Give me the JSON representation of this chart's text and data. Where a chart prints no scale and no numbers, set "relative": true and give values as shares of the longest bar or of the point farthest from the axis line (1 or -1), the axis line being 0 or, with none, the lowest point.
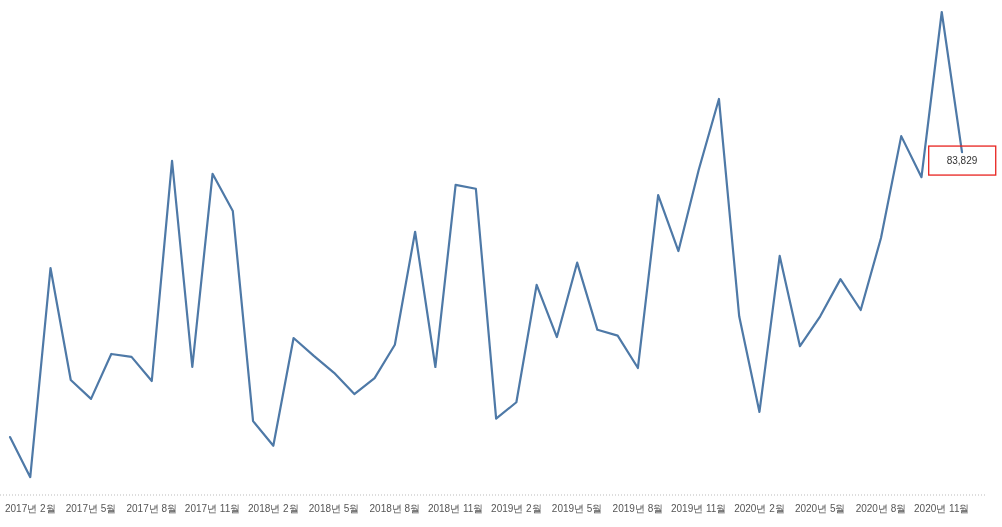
{
  "chart_data": {
    "type": "line",
    "relative": true,
    "color": "#4e79a7",
    "categories": [
      null,
      "2017년 2월",
      null,
      null,
      "2017년 5월",
      null,
      null,
      "2017년 8월",
      null,
      null,
      "2017년 11월",
      null,
      null,
      "2018년 2월",
      null,
      null,
      "2018년 5월",
      null,
      null,
      "2018년 8월",
      null,
      null,
      "2018년 11월",
      null,
      null,
      "2019년 2월",
      null,
      null,
      "2019년 5월",
      null,
      null,
      "2019년 8월",
      null,
      null,
      "2019년 11월",
      null,
      null,
      "2020년 2월",
      null,
      null,
      "2020년 5월",
      null,
      null,
      "2020년 8월",
      null,
      null,
      "2020년 11월",
      null
    ],
    "values": [
      0.12,
      0.037,
      0.47,
      0.238,
      0.199,
      0.292,
      0.286,
      0.236,
      0.692,
      0.265,
      0.665,
      0.588,
      0.153,
      0.102,
      0.325,
      0.288,
      0.253,
      0.209,
      0.242,
      0.311,
      0.545,
      0.265,
      0.642,
      0.634,
      0.158,
      0.192,
      0.435,
      0.327,
      0.481,
      0.342,
      0.33,
      0.263,
      0.621,
      0.505,
      0.673,
      0.82,
      0.37,
      0.172,
      0.495,
      0.308,
      0.37,
      0.447,
      0.383,
      0.532,
      0.743,
      0.658,
      1,
      0.71
    ],
    "annotations": [
      {
        "text": "83,829",
        "y": 0.71
      }
    ]
  }
}
